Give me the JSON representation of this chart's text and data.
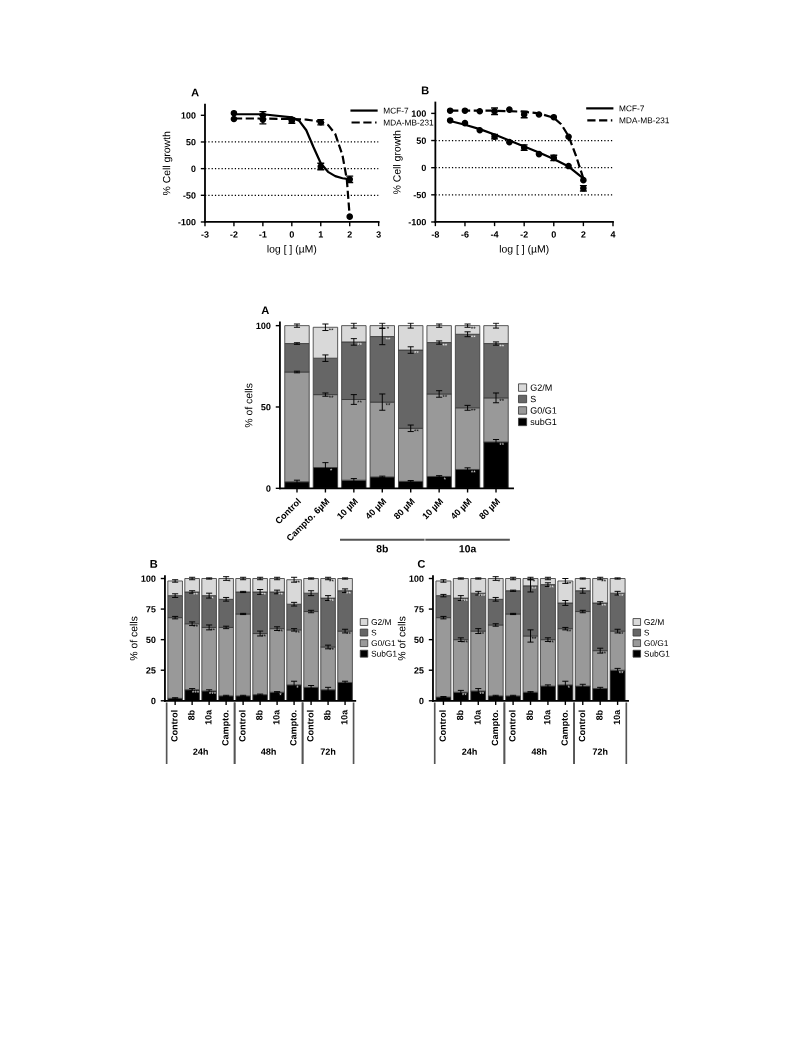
{
  "chart_data": [
    {
      "type": "line",
      "title": "A",
      "xlabel": "log [ ] (µM)",
      "ylabel": "% Cell growth",
      "x": [
        -2,
        -1,
        0,
        1,
        2
      ],
      "legend": "top right",
      "xlim": [
        -3,
        3
      ],
      "xticks": [
        -3,
        -2,
        -1,
        0,
        1,
        2,
        3
      ],
      "ylim": [
        -100,
        120
      ],
      "yticks": [
        -100,
        -50,
        0,
        50,
        100
      ],
      "ref_lines": [
        {
          "axis": "y",
          "value": 50,
          "color": "#000000",
          "line_style": "dotted"
        },
        {
          "axis": "y",
          "value": 0,
          "color": "#000000",
          "line_style": "dotted"
        },
        {
          "axis": "y",
          "value": -50,
          "color": "#000000",
          "line_style": "dotted"
        }
      ],
      "series": [
        {
          "type": "line",
          "name": "MCF-7",
          "color": "#000000",
          "line_style": "solid",
          "x": [
            -2,
            -1,
            0,
            0.25,
            0.5,
            0.75,
            1,
            1.25,
            1.5,
            1.75,
            2
          ],
          "values": [
            102,
            102,
            96,
            90,
            72,
            40,
            10,
            -6,
            -14,
            -18,
            -20
          ]
        },
        {
          "type": "line",
          "name": "MDA-MB-231",
          "color": "#000000",
          "line_style": "dashed",
          "x": [
            -2,
            -1,
            0,
            0.5,
            1,
            1.25,
            1.5,
            1.75,
            1.9,
            2
          ],
          "values": [
            94,
            94,
            93,
            92,
            88,
            82,
            65,
            25,
            -20,
            -90
          ]
        },
        {
          "type": "scatter",
          "marker": "circle",
          "color": "#000000",
          "values": [
            104,
            100,
            90,
            4,
            -20
          ],
          "errors": [
            null,
            7,
            5,
            6,
            6
          ]
        },
        {
          "type": "scatter",
          "marker": "circle",
          "color": "#000000",
          "values": [
            93,
            92,
            92,
            87,
            -90
          ],
          "errors": [
            null,
            8,
            null,
            5,
            null
          ]
        }
      ]
    },
    {
      "type": "line",
      "title": "B",
      "xlabel": "log [ ] (µM)",
      "ylabel": "% Cell growth",
      "x": [
        -7,
        -6,
        -5,
        -4,
        -3,
        -2,
        -1,
        0,
        1,
        2
      ],
      "legend": "top right",
      "xlim": [
        -8,
        4
      ],
      "xticks": [
        -8,
        -6,
        -4,
        -2,
        0,
        2,
        4
      ],
      "ylim": [
        -100,
        120
      ],
      "yticks": [
        -100,
        -50,
        0,
        50,
        100
      ],
      "ref_lines": [
        {
          "axis": "y",
          "value": 50,
          "color": "#000000",
          "line_style": "dotted"
        },
        {
          "axis": "y",
          "value": 0,
          "color": "#000000",
          "line_style": "dotted"
        },
        {
          "axis": "y",
          "value": -50,
          "color": "#000000",
          "line_style": "dotted"
        }
      ],
      "series": [
        {
          "type": "line",
          "name": "MCF-7",
          "color": "#000000",
          "line_style": "solid",
          "x": [
            -7,
            -6,
            -5,
            -4,
            -3,
            -2,
            -1,
            0,
            1,
            2
          ],
          "values": [
            86,
            79,
            71,
            61,
            50,
            39,
            28,
            16,
            2,
            -20
          ]
        },
        {
          "type": "line",
          "name": "MDA-MB-231",
          "color": "#000000",
          "line_style": "dashed",
          "x": [
            -7,
            -4,
            -2,
            -1,
            0,
            0.5,
            1,
            1.5,
            2
          ],
          "values": [
            105,
            105,
            103,
            100,
            92,
            80,
            58,
            22,
            -20
          ]
        },
        {
          "type": "scatter",
          "marker": "circle",
          "color": "#000000",
          "values": [
            87,
            82,
            69,
            57,
            47,
            37,
            25,
            18,
            3,
            -23
          ],
          "errors": [
            null,
            null,
            null,
            4,
            null,
            5,
            null,
            5,
            null,
            null
          ]
        },
        {
          "type": "scatter",
          "marker": "circle",
          "color": "#000000",
          "values": [
            105,
            105,
            104,
            104,
            107,
            98,
            98,
            93,
            57,
            -38
          ],
          "errors": [
            null,
            null,
            null,
            6,
            null,
            6,
            null,
            null,
            null,
            5
          ]
        }
      ]
    },
    {
      "type": "bar",
      "stacked": true,
      "title": "A",
      "ylabel": "% of cells",
      "legend": "right",
      "ylim": [
        0,
        102
      ],
      "yticks": [
        0,
        50,
        100
      ],
      "categories": [
        "Control",
        "Campto. 6µM",
        "10 µM",
        "40 µM",
        "80 µM",
        "10 µM",
        "40 µM",
        "80 µM"
      ],
      "annotations": [
        "8b",
        "10a"
      ],
      "series": [
        {
          "name": "subG1",
          "color": "#000000",
          "values": [
            4,
            12.8,
            5,
            7,
            4.3,
            7.3,
            11.6,
            28.5
          ],
          "errors": [
            1,
            3,
            1,
            0.5,
            0.5,
            0.5,
            1,
            1.5
          ],
          "value_labels": [
            null,
            "*",
            null,
            null,
            null,
            "*",
            "**",
            "**"
          ]
        },
        {
          "name": "G0/G1",
          "color": "#999999",
          "values": [
            67.5,
            44.8,
            49.6,
            46,
            32.6,
            50.7,
            37.9,
            27.1
          ],
          "errors": [
            0.5,
            1,
            3,
            5,
            2,
            2,
            1.5,
            3
          ],
          "value_labels": [
            null,
            "**",
            "**",
            "**",
            "**",
            "**",
            "**",
            "**"
          ]
        },
        {
          "name": "S",
          "color": "#666666",
          "values": [
            17.5,
            22.4,
            35.4,
            40.3,
            48.1,
            31.6,
            45.2,
            33.4
          ],
          "errors": [
            0.5,
            2,
            2,
            5,
            2,
            1,
            1.5,
            1
          ],
          "value_labels": [
            null,
            null,
            "**",
            "**",
            "**",
            "**",
            "**",
            "**"
          ]
        },
        {
          "name": "G2/M",
          "color": "#d9d9d9",
          "values": [
            11,
            19,
            10,
            6.7,
            15,
            10.4,
            5.3,
            11
          ],
          "errors": [
            1,
            2,
            1.5,
            1.5,
            1.5,
            1,
            1,
            1.5
          ],
          "value_labels": [
            null,
            "**",
            null,
            "*",
            null,
            null,
            "**",
            null
          ]
        }
      ]
    },
    {
      "type": "bar",
      "stacked": true,
      "title": "B",
      "ylabel": "% of cells",
      "legend": "right",
      "ylim": [
        0,
        102
      ],
      "yticks": [
        0,
        25,
        50,
        75,
        100
      ],
      "categories": [
        "Control",
        "8b",
        "10a",
        "Campto.",
        "Control",
        "8b",
        "10a",
        "Campto.",
        "Control",
        "8b",
        "10a"
      ],
      "annotations": [
        "24h",
        "48h",
        "72h"
      ],
      "series": [
        {
          "name": "SubG1",
          "color": "#000000",
          "values": [
            2,
            9,
            8,
            4,
            4,
            5,
            7,
            13,
            11,
            9,
            15
          ],
          "errors": [
            0.5,
            1,
            1,
            0.5,
            0.5,
            0.5,
            0.5,
            3,
            1.5,
            2,
            1
          ],
          "value_labels": [
            null,
            "***",
            "***",
            null,
            null,
            null,
            "*",
            "*",
            null,
            null,
            null
          ]
        },
        {
          "name": "G0/G1",
          "color": "#999999",
          "values": [
            66,
            54,
            52,
            56,
            67,
            50,
            52,
            45,
            62,
            35,
            42
          ],
          "errors": [
            1,
            1.5,
            2,
            1,
            0.5,
            2,
            1.5,
            1,
            1,
            1.5,
            1.5
          ],
          "value_labels": [
            null,
            "**",
            "**",
            null,
            null,
            "**",
            "**",
            "**",
            null,
            "**",
            "**"
          ]
        },
        {
          "name": "S",
          "color": "#666666",
          "values": [
            18,
            26,
            26,
            23,
            18,
            34,
            30,
            21,
            15,
            40,
            33
          ],
          "errors": [
            1.5,
            1,
            2,
            1.5,
            0.5,
            2,
            1.5,
            1.5,
            2,
            2,
            1.5
          ],
          "value_labels": [
            null,
            "**",
            "*",
            null,
            null,
            "**",
            "**",
            null,
            null,
            "**",
            "**"
          ]
        },
        {
          "name": "G2/M",
          "color": "#d9d9d9",
          "values": [
            12,
            11,
            14,
            17,
            11,
            11,
            11,
            20,
            12,
            16,
            10
          ],
          "errors": [
            1,
            1,
            0.5,
            1.5,
            1,
            1,
            1,
            2,
            0.5,
            1,
            0.5
          ],
          "value_labels": [
            null,
            null,
            null,
            "*",
            null,
            null,
            null,
            "**",
            null,
            "**",
            null
          ]
        }
      ]
    },
    {
      "type": "bar",
      "stacked": true,
      "title": "C",
      "ylabel": "% of cells",
      "legend": "right",
      "ylim": [
        0,
        102
      ],
      "yticks": [
        0,
        25,
        50,
        75,
        100
      ],
      "categories": [
        "Control",
        "8b",
        "10a",
        "Campto.",
        "Control",
        "8b",
        "10a",
        "Campto.",
        "Control",
        "8b",
        "10a"
      ],
      "annotations": [
        "24h",
        "48h",
        "72h"
      ],
      "series": [
        {
          "name": "SubG1",
          "color": "#000000",
          "values": [
            3,
            7,
            8,
            4,
            4,
            7,
            12,
            13,
            12,
            10,
            25
          ],
          "errors": [
            0.5,
            1.5,
            2,
            0.5,
            0.5,
            0.5,
            1,
            3,
            1.5,
            1,
            1.5
          ],
          "value_labels": [
            null,
            "**",
            "**",
            null,
            null,
            null,
            null,
            "*",
            null,
            null,
            "**"
          ]
        },
        {
          "name": "G0/G1",
          "color": "#999999",
          "values": [
            65,
            43,
            49,
            58,
            67,
            46,
            38,
            46,
            61,
            31,
            32
          ],
          "errors": [
            1,
            1.5,
            2,
            1,
            0.5,
            5,
            1.5,
            1,
            1,
            2,
            1.5
          ],
          "value_labels": [
            null,
            "***",
            "**",
            null,
            null,
            "**",
            "**",
            "**",
            null,
            "**",
            "**"
          ]
        },
        {
          "name": "S",
          "color": "#666666",
          "values": [
            18,
            34,
            31,
            21,
            19,
            41,
            45,
            21,
            17,
            39,
            31
          ],
          "errors": [
            1,
            2,
            1.5,
            1.5,
            0.5,
            5,
            1.5,
            2,
            2,
            1,
            1.5
          ],
          "value_labels": [
            null,
            "***",
            "***",
            null,
            null,
            "**",
            "**",
            null,
            null,
            "**",
            "**"
          ]
        },
        {
          "name": "G2/M",
          "color": "#d9d9d9",
          "values": [
            12,
            16,
            12,
            17,
            10,
            6,
            5,
            18,
            10,
            20,
            12
          ],
          "errors": [
            1,
            0.5,
            0.5,
            1.5,
            1,
            1,
            1,
            2,
            0.5,
            1,
            0.5
          ],
          "value_labels": [
            null,
            null,
            null,
            "*",
            null,
            "*",
            null,
            "**",
            null,
            "**",
            null
          ]
        }
      ]
    }
  ]
}
